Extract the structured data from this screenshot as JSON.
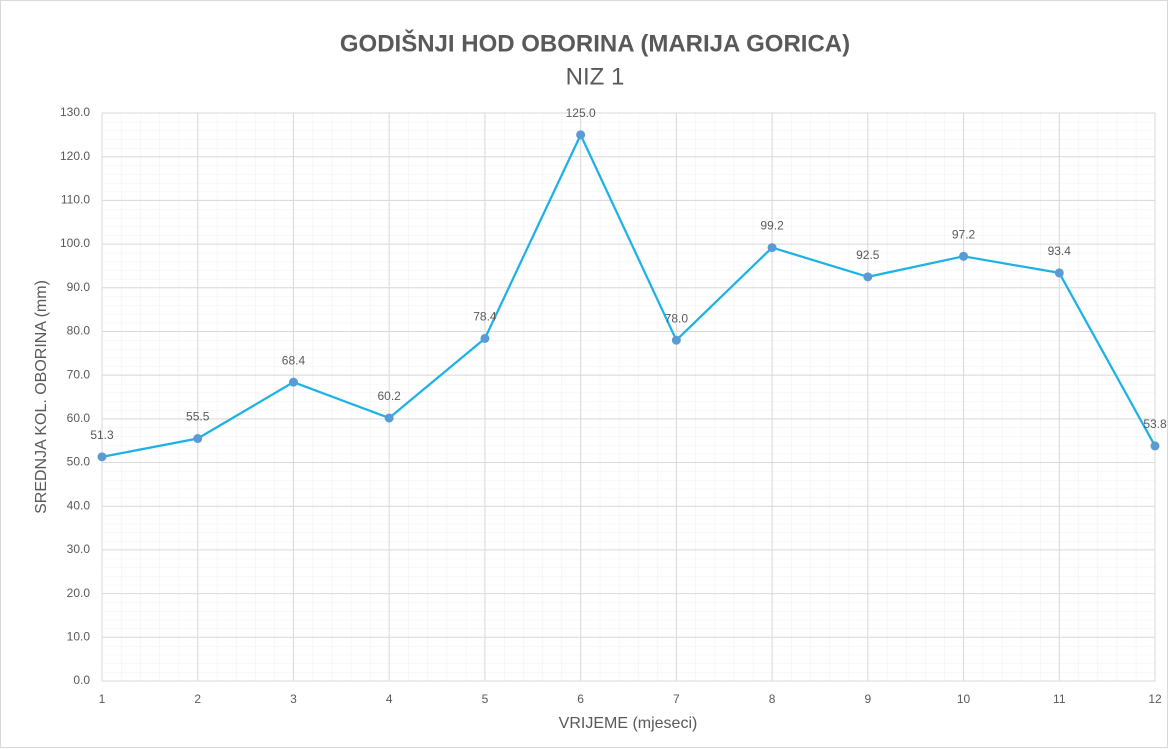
{
  "chart_data": {
    "type": "line",
    "title": "GODIŠNJI HOD OBORINA (MARIJA GORICA)",
    "subtitle": "NIZ 1",
    "x_label": "VRIJEME (mjeseci)",
    "y_label": "SREDNJA KOL. OBORINA (mm)",
    "x": [
      1,
      2,
      3,
      4,
      5,
      6,
      7,
      8,
      9,
      10,
      11,
      12
    ],
    "series": [
      {
        "name": "NIZ 1",
        "color": "#1db2e6",
        "marker_color": "#5b9bd5",
        "values": [
          51.3,
          55.5,
          68.4,
          60.2,
          78.4,
          125.0,
          78.0,
          99.2,
          92.5,
          97.2,
          93.4,
          53.8
        ],
        "value_labels": [
          "51.3",
          "55.5",
          "68.4",
          "60.2",
          "78.4",
          "125.0",
          "78.0",
          "99.2",
          "92.5",
          "97.2",
          "93.4",
          "53.8"
        ]
      }
    ],
    "xlim": [
      1,
      12
    ],
    "xticks": [
      1,
      2,
      3,
      4,
      5,
      6,
      7,
      8,
      9,
      10,
      11,
      12
    ],
    "ylim": [
      0,
      130
    ],
    "yticks": [
      {
        "value": 0,
        "label": "0.0"
      },
      {
        "value": 10,
        "label": "10.0"
      },
      {
        "value": 20,
        "label": "20.0"
      },
      {
        "value": 30,
        "label": "30.0"
      },
      {
        "value": 40,
        "label": "40.0"
      },
      {
        "value": 50,
        "label": "50.0"
      },
      {
        "value": 60,
        "label": "60.0"
      },
      {
        "value": 70,
        "label": "70.0"
      },
      {
        "value": 80,
        "label": "80.0"
      },
      {
        "value": 90,
        "label": "90.0"
      },
      {
        "value": 100,
        "label": "100.0"
      },
      {
        "value": 110,
        "label": "110.0"
      },
      {
        "value": 120,
        "label": "120.0"
      },
      {
        "value": 130,
        "label": "130.0"
      }
    ],
    "grid": true
  }
}
